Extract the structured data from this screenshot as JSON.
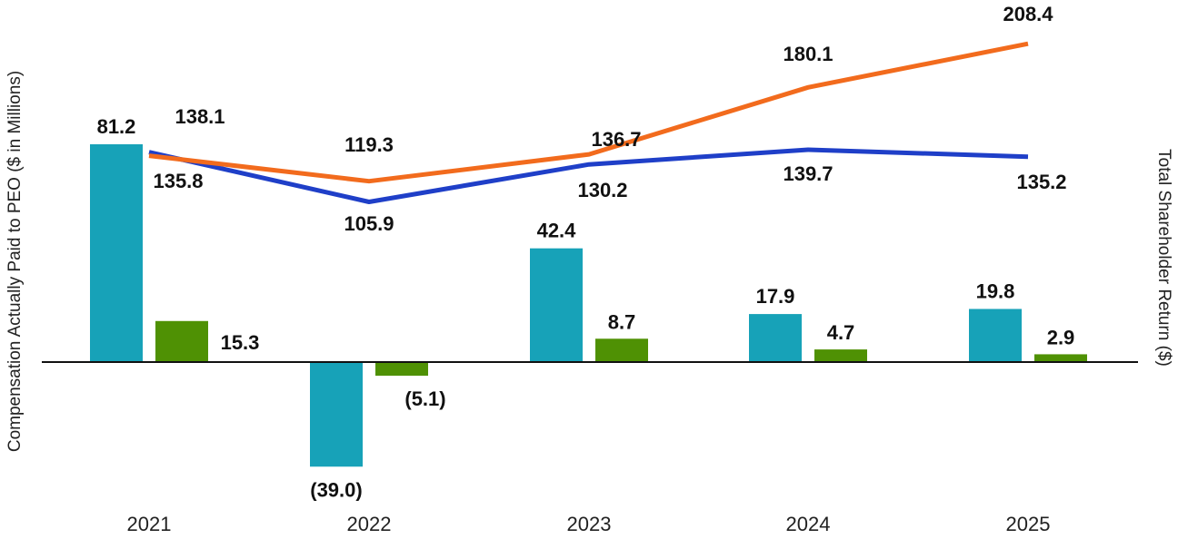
{
  "chart_data": {
    "type": "bar",
    "categories": [
      "2021",
      "2022",
      "2023",
      "2024",
      "2025"
    ],
    "ylabel": "Compensation Actually Paid to PEO ($ in Millions)",
    "y2label": "Total Shareholder Return ($)",
    "grid": false,
    "bar_series": [
      {
        "values": [
          81.2,
          -39.0,
          42.4,
          17.9,
          19.8
        ],
        "labels": [
          "81.2",
          "(39.0)",
          "42.4",
          "17.9",
          "19.8"
        ],
        "color": "#17a2b8"
      },
      {
        "values": [
          15.3,
          -5.1,
          8.7,
          4.7,
          2.9
        ],
        "labels": [
          "15.3",
          "(5.1)",
          "8.7",
          "4.7",
          "2.9"
        ],
        "color": "#4f9104"
      }
    ],
    "line_series": [
      {
        "values": [
          138.1,
          105.9,
          130.2,
          139.7,
          135.2
        ],
        "labels": [
          "138.1",
          "105.9",
          "130.2",
          "139.7",
          "135.2"
        ],
        "color": "#1f3fc8"
      },
      {
        "values": [
          135.8,
          119.3,
          136.7,
          180.1,
          208.4
        ],
        "labels": [
          "135.8",
          "119.3",
          "136.7",
          "180.1",
          "208.4"
        ],
        "color": "#f26b1d"
      }
    ]
  }
}
